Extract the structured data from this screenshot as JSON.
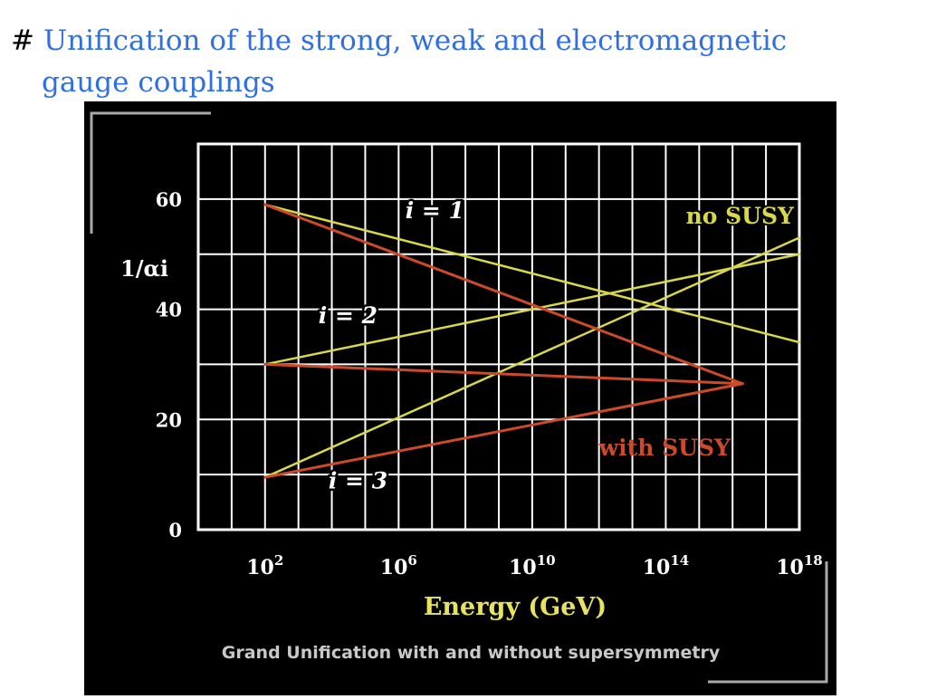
{
  "slide": {
    "bullet": "#",
    "title_line1": "Unification of the strong, weak and electromagnetic",
    "title_line2": "gauge couplings"
  },
  "colors": {
    "title": "#2f6fe0",
    "background": "#000000",
    "grid": "#ffffff",
    "no_susy": "#d8d84a",
    "with_susy": "#cc4a2a",
    "caption": "#c8c8c8"
  },
  "chart_data": {
    "type": "line",
    "title": "",
    "caption": "Grand Unification with and without supersymmetry",
    "xlabel": "Energy (GeV)",
    "ylabel": "1/αi",
    "x_scale": "log10",
    "xlim_log10": [
      0.0,
      18.0
    ],
    "ylim": [
      0,
      70
    ],
    "grid": true,
    "x_ticks": [
      {
        "base": "10",
        "exp": "2",
        "log10": 2
      },
      {
        "base": "10",
        "exp": "6",
        "log10": 6
      },
      {
        "base": "10",
        "exp": "10",
        "log10": 10
      },
      {
        "base": "10",
        "exp": "14",
        "log10": 14
      },
      {
        "base": "10",
        "exp": "18",
        "log10": 18
      }
    ],
    "y_ticks": [
      0,
      20,
      40,
      60
    ],
    "series": [
      {
        "group": "no SUSY",
        "coupling": "i = 1",
        "points": [
          [
            2,
            59
          ],
          [
            18,
            34
          ]
        ]
      },
      {
        "group": "no SUSY",
        "coupling": "i = 2",
        "points": [
          [
            2,
            30
          ],
          [
            18,
            50
          ]
        ]
      },
      {
        "group": "no SUSY",
        "coupling": "i = 3",
        "points": [
          [
            2,
            9.5
          ],
          [
            18,
            53
          ]
        ]
      },
      {
        "group": "with SUSY",
        "coupling": "i = 1",
        "points": [
          [
            2,
            59
          ],
          [
            16.3,
            26.5
          ]
        ]
      },
      {
        "group": "with SUSY",
        "coupling": "i = 2",
        "points": [
          [
            2,
            30
          ],
          [
            16.3,
            26.5
          ]
        ]
      },
      {
        "group": "with SUSY",
        "coupling": "i = 3",
        "points": [
          [
            2,
            9.5
          ],
          [
            16.3,
            26.5
          ]
        ]
      }
    ],
    "annotations": [
      {
        "text": "i = 1",
        "at": [
          6.2,
          56.5
        ],
        "style": "curve-label"
      },
      {
        "text": "i = 2",
        "at": [
          3.6,
          37.5
        ],
        "style": "curve-label"
      },
      {
        "text": "i = 3",
        "at": [
          3.9,
          7.5
        ],
        "style": "curve-label"
      },
      {
        "text": "no SUSY",
        "at": [
          14.6,
          55.5
        ],
        "style": "group-label-yellow"
      },
      {
        "text": "with SUSY",
        "at": [
          12.0,
          13.5
        ],
        "style": "group-label-red"
      }
    ]
  }
}
